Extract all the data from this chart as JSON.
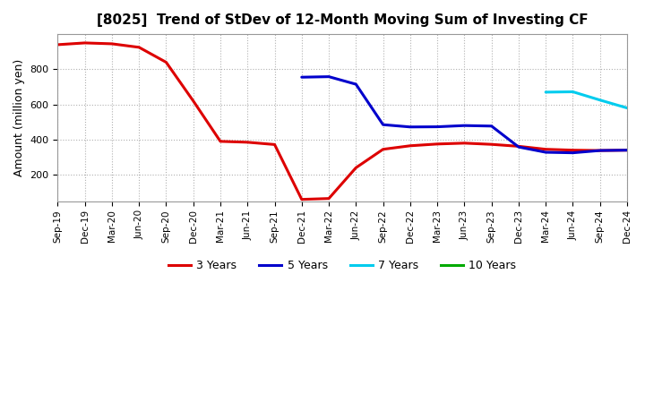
{
  "title": "[8025]  Trend of StDev of 12-Month Moving Sum of Investing CF",
  "ylabel": "Amount (million yen)",
  "background_color": "#ffffff",
  "grid_color": "#b0b0b0",
  "ylim": [
    50,
    1000
  ],
  "yticks": [
    200,
    400,
    600,
    800
  ],
  "x_labels": [
    "Sep-19",
    "Dec-19",
    "Mar-20",
    "Jun-20",
    "Sep-20",
    "Dec-20",
    "Mar-21",
    "Jun-21",
    "Sep-21",
    "Dec-21",
    "Mar-22",
    "Jun-22",
    "Sep-22",
    "Dec-22",
    "Mar-23",
    "Jun-23",
    "Sep-23",
    "Dec-23",
    "Mar-24",
    "Jun-24",
    "Sep-24",
    "Dec-24"
  ],
  "series": {
    "3 Years": {
      "color": "#dd0000",
      "linewidth": 2.2,
      "data_x": [
        "Sep-19",
        "Dec-19",
        "Mar-20",
        "Jun-20",
        "Sep-20",
        "Dec-20",
        "Mar-21",
        "Jun-21",
        "Sep-21",
        "Dec-21",
        "Mar-22",
        "Jun-22",
        "Sep-22",
        "Dec-22",
        "Mar-23",
        "Jun-23",
        "Sep-23",
        "Dec-23",
        "Mar-24",
        "Jun-24",
        "Sep-24",
        "Dec-24"
      ],
      "data_y": [
        940,
        950,
        945,
        925,
        840,
        620,
        390,
        385,
        372,
        60,
        65,
        240,
        345,
        365,
        375,
        380,
        373,
        362,
        345,
        340,
        338,
        340
      ]
    },
    "5 Years": {
      "color": "#0000cc",
      "linewidth": 2.2,
      "data_x": [
        "Dec-21",
        "Mar-22",
        "Jun-22",
        "Sep-22",
        "Dec-22",
        "Mar-23",
        "Jun-23",
        "Sep-23",
        "Dec-23",
        "Mar-24",
        "Jun-24",
        "Sep-24",
        "Dec-24"
      ],
      "data_y": [
        755,
        758,
        715,
        485,
        472,
        473,
        480,
        477,
        358,
        328,
        325,
        338,
        340
      ]
    },
    "7 Years": {
      "color": "#00ccee",
      "linewidth": 2.2,
      "data_x": [
        "Mar-24",
        "Jun-24",
        "Sep-24",
        "Dec-24"
      ],
      "data_y": [
        670,
        672,
        625,
        580
      ]
    },
    "10 Years": {
      "color": "#00aa00",
      "linewidth": 2.2,
      "data_x": [],
      "data_y": []
    }
  },
  "legend_entries": [
    "3 Years",
    "5 Years",
    "7 Years",
    "10 Years"
  ],
  "legend_colors": [
    "#dd0000",
    "#0000cc",
    "#00ccee",
    "#00aa00"
  ]
}
